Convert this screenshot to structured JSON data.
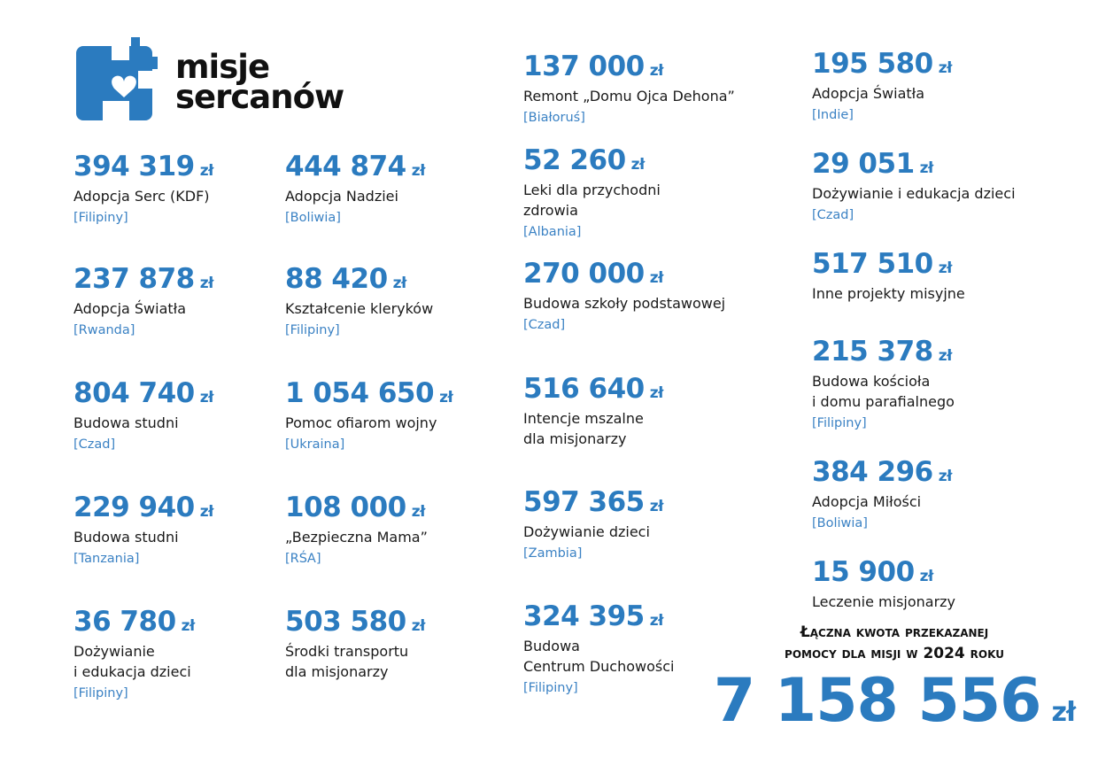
{
  "logo": {
    "line1": "misje",
    "line2": "sercanów"
  },
  "items": [
    {
      "amount": "394 319",
      "currency": "zł",
      "title": [
        "Adopcja Serc (KDF)"
      ],
      "country": "[Filipiny]"
    },
    {
      "amount": "237 878",
      "currency": "zł",
      "title": [
        "Adopcja Światła"
      ],
      "country": "[Rwanda]"
    },
    {
      "amount": "804 740",
      "currency": "zł",
      "title": [
        "Budowa studni"
      ],
      "country": "[Czad]"
    },
    {
      "amount": "229 940",
      "currency": "zł",
      "title": [
        "Budowa studni"
      ],
      "country": "[Tanzania]"
    },
    {
      "amount": "36 780",
      "currency": "zł",
      "title": [
        "Dożywianie",
        "i edukacja dzieci"
      ],
      "country": "[Filipiny]"
    },
    {
      "amount": "444 874",
      "currency": "zł",
      "title": [
        "Adopcja Nadziei"
      ],
      "country": "[Boliwia]"
    },
    {
      "amount": "88 420",
      "currency": "zł",
      "title": [
        "Kształcenie kleryków"
      ],
      "country": "[Filipiny]"
    },
    {
      "amount": "1 054 650",
      "currency": "zł",
      "title": [
        "Pomoc ofiarom wojny"
      ],
      "country": "[Ukraina]"
    },
    {
      "amount": "108 000",
      "currency": "zł",
      "title": [
        "„Bezpieczna Mama”"
      ],
      "country": "[RŚA]"
    },
    {
      "amount": "503 580",
      "currency": "zł",
      "title": [
        "Środki transportu",
        "dla misjonarzy"
      ]
    },
    {
      "amount": "137 000",
      "currency": "zł",
      "title": [
        "Remont „Domu Ojca Dehona”"
      ],
      "country": "[Białoruś]"
    },
    {
      "amount": "52 260",
      "currency": "zł",
      "title": [
        "Leki dla przychodni",
        "zdrowia"
      ],
      "country": "[Albania]"
    },
    {
      "amount": "270 000",
      "currency": "zł",
      "title": [
        "Budowa szkoły podstawowej"
      ],
      "country": "[Czad]"
    },
    {
      "amount": "516 640",
      "currency": "zł",
      "title": [
        "Intencje mszalne",
        "dla misjonarzy"
      ]
    },
    {
      "amount": "597 365",
      "currency": "zł",
      "title": [
        "Dożywianie dzieci"
      ],
      "country": "[Zambia]"
    },
    {
      "amount": "324 395",
      "currency": "zł",
      "title": [
        "Budowa",
        "Centrum Duchowości"
      ],
      "country": "[Filipiny]"
    },
    {
      "amount": "195 580",
      "currency": "zł",
      "title": [
        "Adopcja Światła"
      ],
      "country": "[Indie]"
    },
    {
      "amount": "29 051",
      "currency": "zł",
      "title": [
        "Dożywianie i edukacja dzieci"
      ],
      "country": "[Czad]"
    },
    {
      "amount": "517 510",
      "currency": "zł",
      "title": [
        "Inne projekty misyjne"
      ]
    },
    {
      "amount": "215 378",
      "currency": "zł",
      "title": [
        "Budowa kościoła",
        "i domu parafialnego"
      ],
      "country": "[Filipiny]"
    },
    {
      "amount": "384 296",
      "currency": "zł",
      "title": [
        "Adopcja Miłości"
      ],
      "country": "[Boliwia]"
    },
    {
      "amount": "15 900",
      "currency": "zł",
      "title": [
        "Leczenie misjonarzy"
      ]
    }
  ],
  "total": {
    "heading": [
      "Łączna kwota przekazanej",
      "pomocy dla misji w 2024 roku"
    ],
    "amount": "7 158 556",
    "currency": "zł"
  }
}
